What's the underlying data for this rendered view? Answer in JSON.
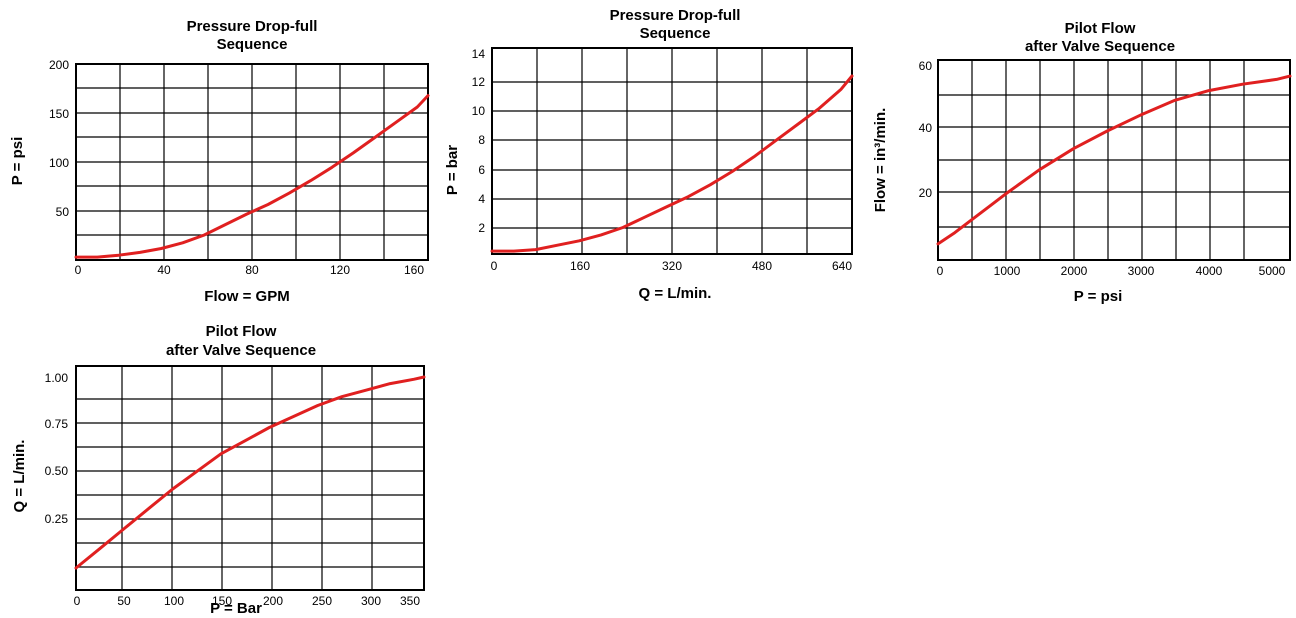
{
  "style": {
    "line_color": "#e02020",
    "grid_color": "#000000",
    "background": "#ffffff"
  },
  "chart_data": [
    {
      "type": "line",
      "title": [
        "Pressure Drop-full",
        "Sequence"
      ],
      "xlabel": "Flow = GPM",
      "ylabel": "P = psi",
      "xlim": [
        0,
        165
      ],
      "ylim": [
        0,
        205
      ],
      "xticks": [
        "0",
        "40",
        "80",
        "120",
        "160"
      ],
      "yticks": [
        "200",
        "150",
        "100",
        "50"
      ],
      "grid": true,
      "series": [
        {
          "x": [
            0,
            10,
            20,
            30,
            40,
            50,
            60,
            70,
            80,
            90,
            100,
            110,
            120,
            130,
            140,
            150,
            160,
            165
          ],
          "y": [
            3,
            3,
            5,
            8,
            12,
            18,
            26,
            37,
            48,
            58,
            70,
            83,
            97,
            112,
            128,
            144,
            160,
            172
          ]
        }
      ]
    },
    {
      "type": "line",
      "title": [
        "Pressure Drop-full",
        "Sequence"
      ],
      "xlabel": "Q = L/min.",
      "ylabel": "P = bar",
      "xlim": [
        0,
        660
      ],
      "ylim": [
        0,
        14
      ],
      "xticks": [
        "0",
        "160",
        "320",
        "480",
        "640"
      ],
      "yticks": [
        "14",
        "12",
        "10",
        "8",
        "6",
        "4",
        "2"
      ],
      "grid": true,
      "series": [
        {
          "x": [
            0,
            40,
            80,
            120,
            160,
            200,
            240,
            280,
            320,
            360,
            400,
            440,
            480,
            520,
            560,
            600,
            640,
            660
          ],
          "y": [
            0.2,
            0.2,
            0.3,
            0.6,
            0.9,
            1.3,
            1.8,
            2.5,
            3.2,
            3.9,
            4.7,
            5.6,
            6.6,
            7.7,
            8.8,
            9.9,
            11.2,
            12.1
          ]
        }
      ]
    },
    {
      "type": "line",
      "title": [
        "Pilot Flow",
        "after Valve Sequence"
      ],
      "xlabel": "P = psi",
      "ylabel": "Flow = in³/min.",
      "xlim": [
        0,
        5200
      ],
      "ylim": [
        0,
        62
      ],
      "xticks": [
        "0",
        "1000",
        "2000",
        "3000",
        "4000",
        "5000"
      ],
      "yticks": [
        "60",
        "40",
        "20"
      ],
      "grid": true,
      "series": [
        {
          "x": [
            0,
            250,
            500,
            750,
            1000,
            1500,
            2000,
            2500,
            3000,
            3500,
            4000,
            4500,
            5000,
            5200
          ],
          "y": [
            5,
            8.5,
            12.5,
            16.5,
            20.5,
            28,
            34.5,
            40,
            45,
            49.5,
            52.5,
            54.5,
            56,
            57
          ]
        }
      ]
    },
    {
      "type": "line",
      "title": [
        "Pilot Flow",
        "after Valve Sequence"
      ],
      "xlabel": "P = Bar",
      "ylabel": "Q = L/min.",
      "xlim": [
        0,
        360
      ],
      "ylim": [
        0,
        1.02
      ],
      "xticks": [
        "0",
        "50",
        "100",
        "150",
        "200",
        "250",
        "300",
        "350"
      ],
      "yticks": [
        "1.00",
        "0.75",
        "0.50",
        "0.25"
      ],
      "grid": true,
      "series": [
        {
          "x": [
            0,
            25,
            50,
            75,
            100,
            125,
            150,
            175,
            200,
            225,
            250,
            275,
            300,
            325,
            350,
            360
          ],
          "y": [
            0.1,
            0.19,
            0.28,
            0.37,
            0.46,
            0.54,
            0.62,
            0.68,
            0.74,
            0.79,
            0.84,
            0.88,
            0.91,
            0.94,
            0.96,
            0.97
          ]
        }
      ]
    }
  ]
}
